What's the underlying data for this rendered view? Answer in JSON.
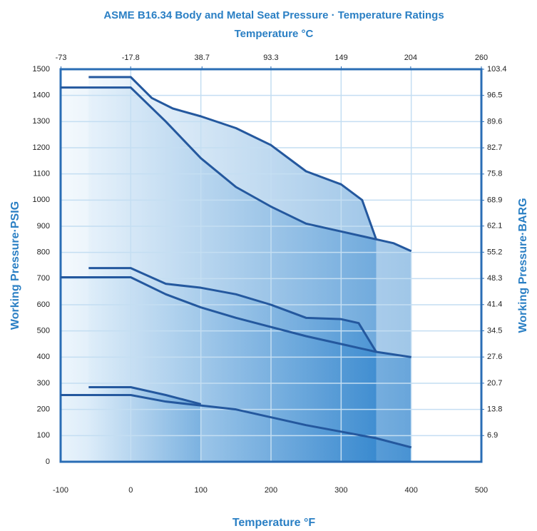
{
  "chart_data": {
    "type": "area-line",
    "title": "ASME B16.34 Body and Metal Seat Pressure · Temperature Ratings",
    "x_label": "Temperature °F",
    "x2_label": "Temperature °C",
    "y_label": "Working Pressure·PSIG",
    "y2_label": "Working Pressure·BARG",
    "xlim": [
      -100,
      500
    ],
    "xticks": [
      -100,
      0,
      100,
      200,
      300,
      400,
      500
    ],
    "x2lim": [
      -73.3,
      260
    ],
    "x2ticks": [
      -73,
      -17.8,
      38.7,
      93.3,
      149,
      204,
      260
    ],
    "ylim": [
      0,
      1500
    ],
    "yticks": [
      0,
      100,
      200,
      300,
      400,
      500,
      600,
      700,
      800,
      900,
      1000,
      1100,
      1200,
      1300,
      1400,
      1500
    ],
    "y2lim": [
      0,
      103.4
    ],
    "y2ticks": [
      6.9,
      13.8,
      20.7,
      27.6,
      34.5,
      41.4,
      48.3,
      55.2,
      62.1,
      68.9,
      75.8,
      82.7,
      89.6,
      96.5,
      103.4
    ],
    "grid": true,
    "series": [
      {
        "color": "#24589e",
        "x": [
          -60,
          0,
          30,
          60,
          100,
          150,
          200,
          250,
          300,
          330,
          350
        ],
        "values": [
          1470,
          1470,
          1390,
          1350,
          1320,
          1275,
          1210,
          1110,
          1060,
          1000,
          850
        ]
      },
      {
        "color": "#24589e",
        "x": [
          -100,
          0,
          50,
          100,
          150,
          200,
          250,
          300,
          350,
          375,
          400
        ],
        "values": [
          1430,
          1430,
          1300,
          1160,
          1050,
          975,
          910,
          880,
          850,
          835,
          805
        ]
      },
      {
        "color": "#24589e",
        "x": [
          -60,
          0,
          50,
          100,
          150,
          200,
          250,
          300,
          325,
          350
        ],
        "values": [
          740,
          740,
          680,
          665,
          640,
          600,
          550,
          545,
          530,
          420
        ]
      },
      {
        "color": "#24589e",
        "x": [
          -100,
          0,
          50,
          100,
          150,
          200,
          250,
          300,
          350,
          400
        ],
        "values": [
          705,
          705,
          640,
          590,
          550,
          515,
          480,
          450,
          420,
          400
        ]
      },
      {
        "color": "#24589e",
        "x": [
          -60,
          0,
          50,
          100
        ],
        "values": [
          285,
          285,
          255,
          220
        ]
      },
      {
        "color": "#24589e",
        "x": [
          -100,
          0,
          50,
          100,
          150,
          200,
          250,
          300,
          350,
          400
        ],
        "values": [
          255,
          255,
          230,
          215,
          200,
          170,
          140,
          115,
          90,
          55
        ]
      }
    ]
  }
}
